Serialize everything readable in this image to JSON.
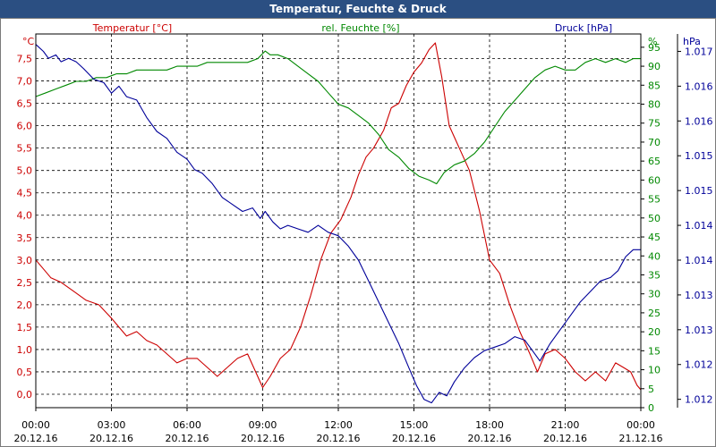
{
  "title": "Temperatur, Feuchte & Druck",
  "chart_data": {
    "type": "line",
    "title": "Temperatur, Feuchte & Druck",
    "x_unit": "hours",
    "x_range": [
      0,
      24
    ],
    "x_ticks": [
      {
        "time": "00:00",
        "date": "20.12.16"
      },
      {
        "time": "03:00",
        "date": "20.12.16"
      },
      {
        "time": "06:00",
        "date": "20.12.16"
      },
      {
        "time": "09:00",
        "date": "20.12.16"
      },
      {
        "time": "12:00",
        "date": "20.12.16"
      },
      {
        "time": "15:00",
        "date": "20.12.16"
      },
      {
        "time": "18:00",
        "date": "20.12.16"
      },
      {
        "time": "21:00",
        "date": "20.12.16"
      },
      {
        "time": "00:00",
        "date": "21.12.16"
      }
    ],
    "axes": {
      "temperature": {
        "label": "Temperatur [°C]",
        "unit": "°C",
        "range": [
          -0.3,
          8.05
        ],
        "color": "#cc0000",
        "ticks": [
          "0,0",
          "0,5",
          "1,0",
          "1,5",
          "2,0",
          "2,5",
          "3,0",
          "3,5",
          "4,0",
          "4,5",
          "5,0",
          "5,5",
          "6,0",
          "6,5",
          "7,0",
          "7,5"
        ]
      },
      "humidity": {
        "label": "rel. Feuchte [%]",
        "unit": "%",
        "range": [
          0,
          98.5
        ],
        "color": "#008800",
        "ticks": [
          "0",
          "5",
          "10",
          "15",
          "20",
          "25",
          "30",
          "35",
          "40",
          "45",
          "50",
          "55",
          "60",
          "65",
          "70",
          "75",
          "80",
          "85",
          "90",
          "95"
        ]
      },
      "pressure": {
        "label": "Druck [hPa]",
        "unit": "hPa",
        "range": [
          1011.88,
          1017.25
        ],
        "color": "#000099",
        "ticks": [
          "1.012",
          "1.012",
          "1.013",
          "1.013",
          "1.014",
          "1.014",
          "1.015",
          "1.015",
          "1.016",
          "1.016",
          "1.017",
          "1.017"
        ],
        "tick_values": [
          1012.0,
          1012.5,
          1013.0,
          1013.5,
          1014.0,
          1014.5,
          1015.0,
          1015.5,
          1016.0,
          1016.5,
          1017.0,
          1017.5
        ]
      }
    },
    "series": [
      {
        "name": "Temperatur",
        "axis": "temperature",
        "color": "#cc0000",
        "points": [
          [
            0,
            3.0
          ],
          [
            0.3,
            2.8
          ],
          [
            0.6,
            2.6
          ],
          [
            1.0,
            2.5
          ],
          [
            1.5,
            2.3
          ],
          [
            2.0,
            2.1
          ],
          [
            2.5,
            2.0
          ],
          [
            3.0,
            1.7
          ],
          [
            3.3,
            1.5
          ],
          [
            3.6,
            1.3
          ],
          [
            4.0,
            1.4
          ],
          [
            4.4,
            1.2
          ],
          [
            4.8,
            1.1
          ],
          [
            5.2,
            0.9
          ],
          [
            5.6,
            0.7
          ],
          [
            6.0,
            0.8
          ],
          [
            6.4,
            0.8
          ],
          [
            6.8,
            0.6
          ],
          [
            7.2,
            0.4
          ],
          [
            7.6,
            0.6
          ],
          [
            8.0,
            0.8
          ],
          [
            8.4,
            0.9
          ],
          [
            8.8,
            0.4
          ],
          [
            9.0,
            0.15
          ],
          [
            9.3,
            0.4
          ],
          [
            9.7,
            0.8
          ],
          [
            10.1,
            1.0
          ],
          [
            10.5,
            1.5
          ],
          [
            10.9,
            2.2
          ],
          [
            11.3,
            3.0
          ],
          [
            11.7,
            3.6
          ],
          [
            12.1,
            3.9
          ],
          [
            12.5,
            4.4
          ],
          [
            12.8,
            4.9
          ],
          [
            13.1,
            5.3
          ],
          [
            13.4,
            5.5
          ],
          [
            13.8,
            5.9
          ],
          [
            14.1,
            6.4
          ],
          [
            14.4,
            6.5
          ],
          [
            14.7,
            6.9
          ],
          [
            15.0,
            7.2
          ],
          [
            15.3,
            7.4
          ],
          [
            15.6,
            7.7
          ],
          [
            15.85,
            7.85
          ],
          [
            16.1,
            7.1
          ],
          [
            16.4,
            6.0
          ],
          [
            16.8,
            5.5
          ],
          [
            17.2,
            5.0
          ],
          [
            17.6,
            4.1
          ],
          [
            18.0,
            3.0
          ],
          [
            18.4,
            2.7
          ],
          [
            18.8,
            2.0
          ],
          [
            19.2,
            1.4
          ],
          [
            19.6,
            0.9
          ],
          [
            19.9,
            0.5
          ],
          [
            20.2,
            0.9
          ],
          [
            20.6,
            1.0
          ],
          [
            21.0,
            0.8
          ],
          [
            21.4,
            0.5
          ],
          [
            21.8,
            0.3
          ],
          [
            22.2,
            0.5
          ],
          [
            22.6,
            0.3
          ],
          [
            23.0,
            0.7
          ],
          [
            23.3,
            0.6
          ],
          [
            23.6,
            0.5
          ],
          [
            23.85,
            0.2
          ],
          [
            24.0,
            0.1
          ]
        ]
      },
      {
        "name": "rel. Feuchte",
        "axis": "humidity",
        "color": "#008800",
        "points": [
          [
            0,
            82
          ],
          [
            0.4,
            83
          ],
          [
            0.8,
            84
          ],
          [
            1.2,
            85
          ],
          [
            1.6,
            86
          ],
          [
            2.0,
            86
          ],
          [
            2.4,
            87
          ],
          [
            2.8,
            87
          ],
          [
            3.2,
            88
          ],
          [
            3.6,
            88
          ],
          [
            4.0,
            89
          ],
          [
            4.4,
            89
          ],
          [
            4.8,
            89
          ],
          [
            5.2,
            89
          ],
          [
            5.6,
            90
          ],
          [
            6.0,
            90
          ],
          [
            6.4,
            90
          ],
          [
            6.8,
            91
          ],
          [
            7.2,
            91
          ],
          [
            7.6,
            91
          ],
          [
            8.0,
            91
          ],
          [
            8.4,
            91
          ],
          [
            8.8,
            92
          ],
          [
            9.1,
            94
          ],
          [
            9.3,
            93
          ],
          [
            9.6,
            93
          ],
          [
            10.0,
            92
          ],
          [
            10.4,
            90
          ],
          [
            10.8,
            88
          ],
          [
            11.2,
            86
          ],
          [
            11.6,
            83
          ],
          [
            12.0,
            80
          ],
          [
            12.4,
            79
          ],
          [
            12.8,
            77
          ],
          [
            13.2,
            75
          ],
          [
            13.6,
            72
          ],
          [
            14.0,
            68
          ],
          [
            14.4,
            66
          ],
          [
            14.8,
            63
          ],
          [
            15.2,
            61
          ],
          [
            15.6,
            60
          ],
          [
            15.9,
            59
          ],
          [
            16.2,
            62
          ],
          [
            16.6,
            64
          ],
          [
            17.0,
            65
          ],
          [
            17.4,
            67
          ],
          [
            17.8,
            70
          ],
          [
            18.2,
            74
          ],
          [
            18.6,
            78
          ],
          [
            19.0,
            81
          ],
          [
            19.4,
            84
          ],
          [
            19.8,
            87
          ],
          [
            20.2,
            89
          ],
          [
            20.6,
            90
          ],
          [
            21.0,
            89
          ],
          [
            21.4,
            89
          ],
          [
            21.8,
            91
          ],
          [
            22.2,
            92
          ],
          [
            22.6,
            91
          ],
          [
            23.0,
            92
          ],
          [
            23.4,
            91
          ],
          [
            23.7,
            92
          ],
          [
            24.0,
            92
          ]
        ]
      },
      {
        "name": "Druck",
        "axis": "pressure",
        "color": "#000099",
        "points": [
          [
            0,
            1017.1
          ],
          [
            0.3,
            1017.0
          ],
          [
            0.5,
            1016.9
          ],
          [
            0.8,
            1016.95
          ],
          [
            1.0,
            1016.85
          ],
          [
            1.3,
            1016.9
          ],
          [
            1.6,
            1016.85
          ],
          [
            1.9,
            1016.75
          ],
          [
            2.3,
            1016.6
          ],
          [
            2.7,
            1016.55
          ],
          [
            3.0,
            1016.4
          ],
          [
            3.3,
            1016.5
          ],
          [
            3.6,
            1016.35
          ],
          [
            4.0,
            1016.3
          ],
          [
            4.4,
            1016.05
          ],
          [
            4.8,
            1015.85
          ],
          [
            5.2,
            1015.75
          ],
          [
            5.6,
            1015.55
          ],
          [
            6.0,
            1015.45
          ],
          [
            6.3,
            1015.3
          ],
          [
            6.6,
            1015.25
          ],
          [
            7.0,
            1015.1
          ],
          [
            7.4,
            1014.9
          ],
          [
            7.8,
            1014.8
          ],
          [
            8.2,
            1014.7
          ],
          [
            8.6,
            1014.75
          ],
          [
            8.9,
            1014.6
          ],
          [
            9.1,
            1014.7
          ],
          [
            9.4,
            1014.55
          ],
          [
            9.7,
            1014.45
          ],
          [
            10.0,
            1014.5
          ],
          [
            10.4,
            1014.45
          ],
          [
            10.8,
            1014.4
          ],
          [
            11.2,
            1014.5
          ],
          [
            11.6,
            1014.4
          ],
          [
            12.0,
            1014.35
          ],
          [
            12.4,
            1014.2
          ],
          [
            12.8,
            1014.0
          ],
          [
            13.2,
            1013.7
          ],
          [
            13.6,
            1013.4
          ],
          [
            14.0,
            1013.1
          ],
          [
            14.4,
            1012.8
          ],
          [
            14.8,
            1012.45
          ],
          [
            15.1,
            1012.2
          ],
          [
            15.4,
            1012.0
          ],
          [
            15.7,
            1011.95
          ],
          [
            16.0,
            1012.1
          ],
          [
            16.3,
            1012.05
          ],
          [
            16.6,
            1012.25
          ],
          [
            17.0,
            1012.45
          ],
          [
            17.4,
            1012.6
          ],
          [
            17.8,
            1012.7
          ],
          [
            18.2,
            1012.75
          ],
          [
            18.6,
            1012.8
          ],
          [
            19.0,
            1012.9
          ],
          [
            19.4,
            1012.85
          ],
          [
            19.7,
            1012.7
          ],
          [
            20.0,
            1012.55
          ],
          [
            20.4,
            1012.8
          ],
          [
            20.8,
            1013.0
          ],
          [
            21.2,
            1013.2
          ],
          [
            21.6,
            1013.4
          ],
          [
            22.0,
            1013.55
          ],
          [
            22.4,
            1013.7
          ],
          [
            22.8,
            1013.75
          ],
          [
            23.1,
            1013.85
          ],
          [
            23.4,
            1014.05
          ],
          [
            23.7,
            1014.15
          ],
          [
            24.0,
            1014.15
          ]
        ]
      }
    ]
  }
}
